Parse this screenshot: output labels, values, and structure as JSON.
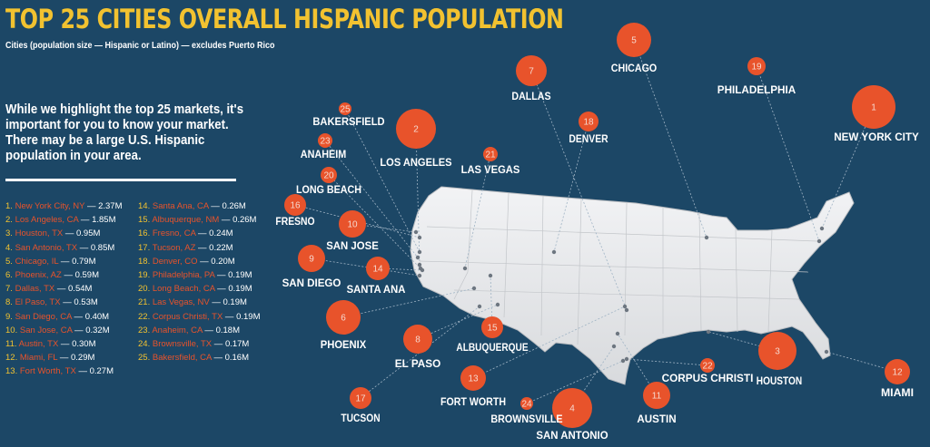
{
  "header": {
    "title": "TOP 25 CITIES OVERALL HISPANIC POPULATION",
    "subtitle": "Cities (population size — Hispanic or Latino) — excludes Puerto Rico"
  },
  "intro_text": "While we highlight the top 25 markets, it's important for you to know your market. There may be a large U.S. Hispanic population in your area.",
  "colors": {
    "background": "#1c4766",
    "title": "#f2c230",
    "circle": "#e8532b",
    "map": "#e9eaec"
  },
  "list": [
    {
      "rank": "1.",
      "city": "New York City, NY",
      "value": "2.37M"
    },
    {
      "rank": "2.",
      "city": "Los Angeles, CA",
      "value": "1.85M"
    },
    {
      "rank": "3.",
      "city": "Houston, TX",
      "value": "0.95M"
    },
    {
      "rank": "4.",
      "city": "San Antonio, TX",
      "value": "0.85M"
    },
    {
      "rank": "5.",
      "city": "Chicago, IL",
      "value": "0.79M"
    },
    {
      "rank": "6.",
      "city": "Phoenix, AZ",
      "value": "0.59M"
    },
    {
      "rank": "7.",
      "city": "Dallas, TX",
      "value": "0.54M"
    },
    {
      "rank": "8.",
      "city": "El Paso, TX",
      "value": "0.53M"
    },
    {
      "rank": "9.",
      "city": "San Diego, CA",
      "value": "0.40M"
    },
    {
      "rank": "10.",
      "city": "San Jose, CA",
      "value": "0.32M"
    },
    {
      "rank": "11.",
      "city": "Austin, TX",
      "value": "0.30M"
    },
    {
      "rank": "12.",
      "city": "Miami, FL",
      "value": "0.29M"
    },
    {
      "rank": "13.",
      "city": "Fort Worth, TX",
      "value": "0.27M"
    },
    {
      "rank": "14.",
      "city": "Santa Ana, CA",
      "value": "0.26M"
    },
    {
      "rank": "15.",
      "city": "Albuquerque, NM",
      "value": "0.26M"
    },
    {
      "rank": "16.",
      "city": "Fresno, CA",
      "value": "0.24M"
    },
    {
      "rank": "17.",
      "city": "Tucson, AZ",
      "value": "0.22M"
    },
    {
      "rank": "18.",
      "city": "Denver, CO",
      "value": "0.20M"
    },
    {
      "rank": "19.",
      "city": "Philadelphia, PA",
      "value": "0.19M"
    },
    {
      "rank": "20.",
      "city": "Long Beach, CA",
      "value": "0.19M"
    },
    {
      "rank": "21.",
      "city": "Las Vegas, NV",
      "value": "0.19M"
    },
    {
      "rank": "22.",
      "city": "Corpus Christi, TX",
      "value": "0.19M"
    },
    {
      "rank": "23.",
      "city": "Anaheim, CA",
      "value": "0.18M"
    },
    {
      "rank": "24.",
      "city": "Brownsville, TX",
      "value": "0.17M"
    },
    {
      "rank": "25.",
      "city": "Bakersfield, CA",
      "value": "0.16M"
    }
  ],
  "map_markers": [
    {
      "num": "1",
      "label": "NEW YORK CITY"
    },
    {
      "num": "2",
      "label": "LOS ANGELES"
    },
    {
      "num": "3",
      "label": "HOUSTON"
    },
    {
      "num": "4",
      "label": "SAN ANTONIO"
    },
    {
      "num": "5",
      "label": "CHICAGO"
    },
    {
      "num": "6",
      "label": "PHOENIX"
    },
    {
      "num": "7",
      "label": "DALLAS"
    },
    {
      "num": "8",
      "label": "EL PASO"
    },
    {
      "num": "9",
      "label": "SAN DIEGO"
    },
    {
      "num": "10",
      "label": "SAN JOSE"
    },
    {
      "num": "11",
      "label": "AUSTIN"
    },
    {
      "num": "12",
      "label": "MIAMI"
    },
    {
      "num": "13",
      "label": "FORT WORTH"
    },
    {
      "num": "14",
      "label": "SANTA ANA"
    },
    {
      "num": "15",
      "label": "ALBUQUERQUE"
    },
    {
      "num": "16",
      "label": "FRESNO"
    },
    {
      "num": "17",
      "label": "TUCSON"
    },
    {
      "num": "18",
      "label": "DENVER"
    },
    {
      "num": "19",
      "label": "PHILADELPHIA"
    },
    {
      "num": "20",
      "label": "LONG BEACH"
    },
    {
      "num": "21",
      "label": "LAS VEGAS"
    },
    {
      "num": "22",
      "label": "CORPUS CHRISTI"
    },
    {
      "num": "23",
      "label": "ANAHEIM"
    },
    {
      "num": "24",
      "label": "BROWNSVILLE"
    },
    {
      "num": "25",
      "label": "BAKERSFIELD"
    }
  ]
}
